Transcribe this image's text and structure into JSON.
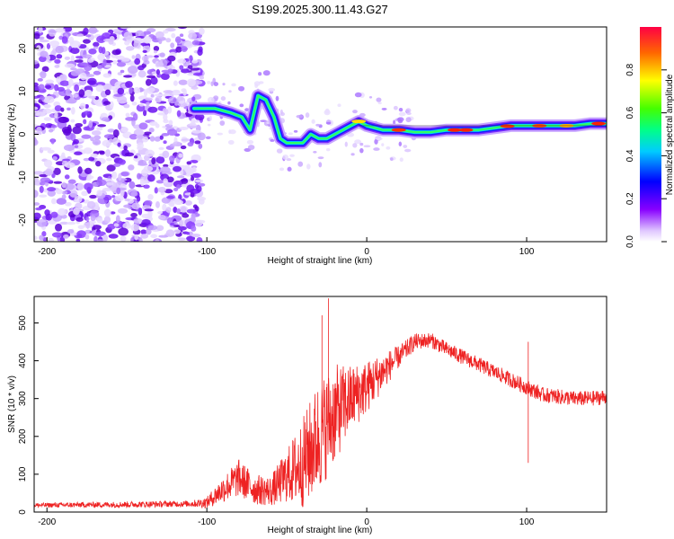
{
  "title": "S199.2025.300.11.43.G27",
  "chart_data": [
    {
      "type": "heatmap",
      "name": "spectrogram",
      "xlabel": "Height of straight line (km)",
      "ylabel": "Frequency (Hz)",
      "xlim": [
        -208,
        150
      ],
      "ylim": [
        -25,
        25
      ],
      "xticks": [
        -200,
        -100,
        0,
        100
      ],
      "yticks": [
        -20,
        -10,
        0,
        10,
        20
      ],
      "ridge_x": [
        -108,
        -95,
        -85,
        -78,
        -73,
        -68,
        -63,
        -58,
        -54,
        -50,
        -45,
        -40,
        -35,
        -30,
        -25,
        -20,
        -15,
        -10,
        -5,
        0,
        10,
        20,
        30,
        40,
        50,
        60,
        70,
        80,
        90,
        100,
        110,
        120,
        130,
        140,
        150
      ],
      "ridge_hz": [
        6,
        6,
        5,
        4,
        1,
        9,
        8,
        4,
        -1,
        -2,
        -2,
        -2,
        0,
        -1,
        -1,
        0,
        1,
        2,
        3,
        2,
        1,
        1,
        0.5,
        0.5,
        1,
        1,
        1,
        1.5,
        2,
        2,
        2,
        2,
        2,
        2.5,
        2.5
      ],
      "colorbar": {
        "label": "Normalized spectral amplitude",
        "ticks": [
          "0.0",
          "0.2",
          "0.4",
          "0.6",
          "0.8"
        ],
        "range": [
          0,
          1
        ]
      }
    },
    {
      "type": "line",
      "name": "snr",
      "xlabel": "Height of straight line (km)",
      "ylabel": "SNR (10 * v/v)",
      "xlim": [
        -208,
        150
      ],
      "ylim": [
        0,
        570
      ],
      "xticks": [
        -200,
        -100,
        0,
        100
      ],
      "yticks": [
        0,
        100,
        200,
        300,
        400,
        500
      ],
      "color": "#ee2222",
      "trend_x": [
        -208,
        -150,
        -110,
        -100,
        -90,
        -80,
        -70,
        -60,
        -50,
        -40,
        -30,
        -20,
        -10,
        0,
        10,
        20,
        30,
        40,
        50,
        60,
        70,
        80,
        90,
        100,
        110,
        120,
        130,
        140,
        150
      ],
      "trend_y": [
        18,
        20,
        22,
        25,
        60,
        90,
        60,
        55,
        95,
        130,
        200,
        260,
        300,
        330,
        370,
        410,
        450,
        455,
        430,
        410,
        390,
        370,
        350,
        330,
        310,
        305,
        300,
        300,
        305
      ],
      "noise_amp": [
        6,
        8,
        8,
        15,
        35,
        50,
        40,
        40,
        70,
        120,
        150,
        130,
        90,
        70,
        50,
        30,
        22,
        20,
        20,
        20,
        20,
        20,
        20,
        20,
        20,
        20,
        20,
        20,
        20
      ],
      "spikes": [
        {
          "x": -24,
          "y": 565
        },
        {
          "x": -28,
          "y": 520
        },
        {
          "x": 101,
          "y": 130
        },
        {
          "x": 101,
          "y": 450
        }
      ]
    }
  ]
}
